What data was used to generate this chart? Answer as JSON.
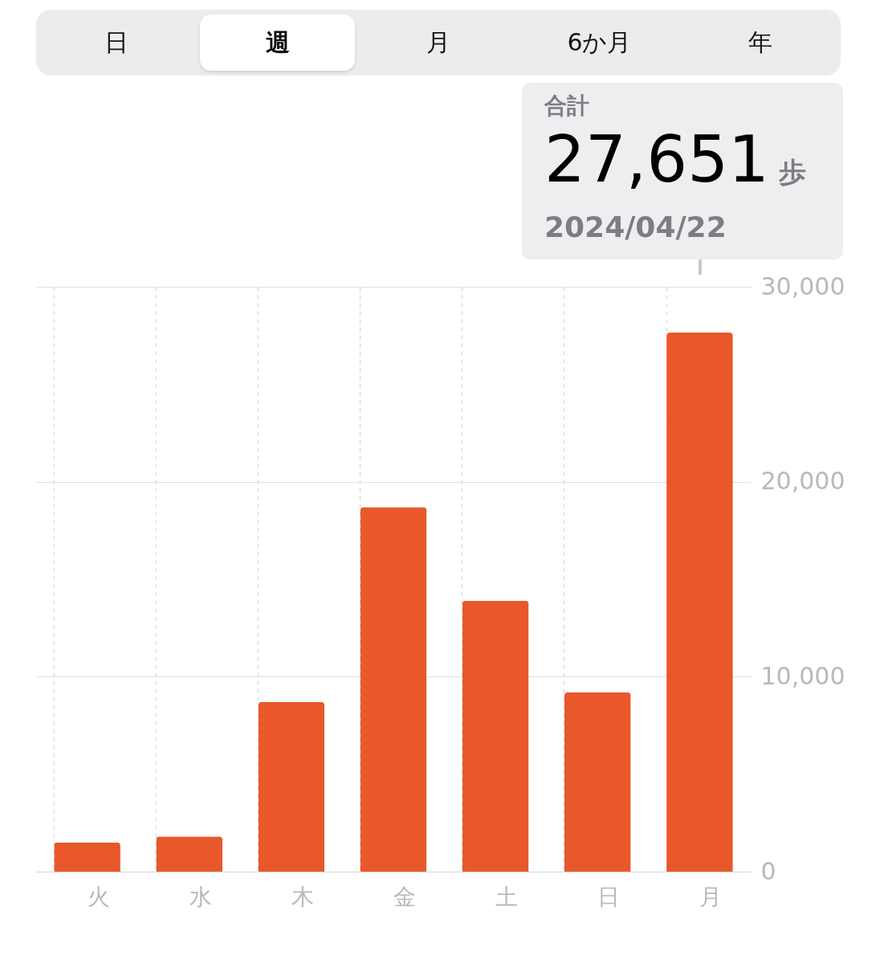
{
  "chart_data": {
    "type": "bar",
    "categories": [
      "火",
      "水",
      "木",
      "金",
      "土",
      "日",
      "月"
    ],
    "values": [
      1500,
      1800,
      8700,
      18700,
      13900,
      9200,
      27651
    ],
    "value_labels": [
      null,
      null,
      null,
      null,
      null,
      null,
      "27,651"
    ],
    "color": "#e8582a",
    "ylim": [
      0,
      30000
    ],
    "yticks": [
      0,
      {
        "value": 10000,
        "label": "10,000"
      },
      {
        "value": 20000,
        "label": "20,000"
      },
      {
        "value": 30000,
        "label": "30,000"
      }
    ],
    "grid": true,
    "annotations": [
      "日",
      "週",
      "月",
      "6か月",
      "年",
      "合計",
      "歩",
      "2024/04/22"
    ]
  }
}
